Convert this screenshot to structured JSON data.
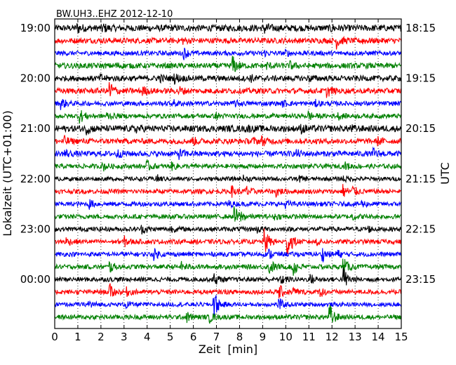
{
  "chart_data": {
    "type": "line",
    "title": "BW.UH3..EHZ 2012-12-10",
    "xlabel": "Zeit  [min]",
    "ylabel_left": "Lokalzeit (UTC+01:00)",
    "ylabel_right": "UTC",
    "xlim": [
      0,
      15
    ],
    "x_ticks": [
      "0",
      "1",
      "2",
      "3",
      "4",
      "5",
      "6",
      "7",
      "8",
      "9",
      "10",
      "11",
      "12",
      "13",
      "14",
      "15"
    ],
    "vertical_grid": "dotted at each minute",
    "traces_per_hour": 4,
    "color_cycle": [
      "#000000",
      "#ff0000",
      "#0000ff",
      "#008000"
    ],
    "left_hour_labels": [
      "19:00",
      "20:00",
      "21:00",
      "22:00",
      "23:00",
      "00:00"
    ],
    "right_hour_labels": [
      "18:15",
      "19:15",
      "20:15",
      "21:15",
      "22:15",
      "23:15"
    ],
    "traces": [
      {
        "amp": 0.7,
        "events": [
          [
            1.0,
            0.8
          ],
          [
            2.1,
            0.7
          ],
          [
            9.1,
            1.0
          ],
          [
            12.0,
            0.5
          ]
        ]
      },
      {
        "amp": 0.6,
        "events": [
          [
            5.5,
            0.6
          ],
          [
            12.2,
            1.4
          ],
          [
            13.3,
            0.5
          ]
        ]
      },
      {
        "amp": 0.5,
        "events": [
          [
            5.6,
            1.0
          ],
          [
            9.0,
            0.7
          ],
          [
            10.0,
            0.5
          ]
        ]
      },
      {
        "amp": 0.6,
        "events": [
          [
            2.6,
            0.6
          ],
          [
            7.7,
            1.9
          ],
          [
            9.2,
            0.5
          ],
          [
            10.2,
            0.6
          ]
        ]
      },
      {
        "amp": 0.6,
        "events": [
          [
            2.0,
            0.6
          ],
          [
            4.5,
            0.7
          ],
          [
            5.2,
            0.9
          ],
          [
            8.5,
            0.5
          ],
          [
            11.0,
            0.5
          ]
        ]
      },
      {
        "amp": 0.6,
        "events": [
          [
            2.4,
            2.0
          ],
          [
            3.8,
            0.8
          ],
          [
            5.4,
            0.7
          ],
          [
            11.8,
            1.0
          ]
        ]
      },
      {
        "amp": 0.5,
        "events": [
          [
            0.3,
            1.0
          ],
          [
            5.2,
            0.5
          ],
          [
            7.8,
            0.5
          ],
          [
            9.9,
            0.5
          ],
          [
            11.3,
            0.5
          ]
        ]
      },
      {
        "amp": 0.5,
        "events": [
          [
            1.1,
            1.3
          ],
          [
            2.3,
            0.6
          ],
          [
            7.0,
            0.5
          ],
          [
            11.0,
            0.8
          ],
          [
            12.3,
            0.5
          ]
        ]
      },
      {
        "amp": 0.7,
        "events": [
          [
            1.4,
            0.8
          ],
          [
            3.5,
            0.6
          ],
          [
            8.3,
            0.5
          ],
          [
            10.7,
            0.6
          ],
          [
            12.8,
            0.5
          ]
        ]
      },
      {
        "amp": 0.6,
        "events": [
          [
            0.4,
            0.9
          ],
          [
            6.0,
            0.6
          ],
          [
            8.5,
            0.6
          ],
          [
            9.0,
            0.7
          ],
          [
            14.0,
            0.6
          ]
        ]
      },
      {
        "amp": 0.6,
        "events": [
          [
            0.4,
            1.0
          ],
          [
            2.7,
            0.7
          ],
          [
            5.4,
            0.8
          ],
          [
            10.5,
            0.5
          ],
          [
            13.8,
            0.8
          ]
        ]
      },
      {
        "amp": 0.5,
        "events": [
          [
            2.1,
            0.8
          ],
          [
            4.0,
            0.9
          ],
          [
            5.1,
            0.6
          ],
          [
            12.6,
            0.6
          ]
        ]
      },
      {
        "amp": 0.45,
        "events": [
          [
            4.4,
            0.8
          ],
          [
            8.2,
            0.5
          ],
          [
            10.6,
            0.5
          ],
          [
            12.5,
            0.6
          ]
        ]
      },
      {
        "amp": 0.5,
        "events": [
          [
            7.7,
            0.9
          ],
          [
            8.3,
            1.1
          ],
          [
            9.6,
            1.0
          ],
          [
            12.5,
            1.3
          ],
          [
            12.9,
            1.0
          ]
        ]
      },
      {
        "amp": 0.5,
        "events": [
          [
            1.5,
            0.8
          ],
          [
            7.5,
            0.6
          ],
          [
            10.0,
            0.6
          ],
          [
            13.3,
            0.6
          ]
        ]
      },
      {
        "amp": 0.5,
        "events": [
          [
            7.8,
            1.9
          ],
          [
            8.1,
            0.6
          ],
          [
            9.5,
            0.5
          ],
          [
            12.9,
            0.6
          ]
        ]
      },
      {
        "amp": 0.5,
        "events": [
          [
            3.8,
            0.7
          ],
          [
            5.0,
            0.6
          ],
          [
            8.8,
            0.6
          ],
          [
            13.5,
            0.8
          ]
        ]
      },
      {
        "amp": 0.5,
        "events": [
          [
            0.5,
            0.8
          ],
          [
            3.0,
            1.0
          ],
          [
            9.1,
            2.5
          ],
          [
            10.1,
            3.0
          ],
          [
            11.3,
            0.7
          ]
        ]
      },
      {
        "amp": 0.5,
        "events": [
          [
            4.3,
            1.0
          ],
          [
            9.3,
            0.8
          ],
          [
            11.6,
            1.2
          ],
          [
            12.2,
            0.9
          ]
        ]
      },
      {
        "amp": 0.5,
        "events": [
          [
            2.4,
            1.0
          ],
          [
            5.5,
            0.8
          ],
          [
            9.3,
            1.6
          ],
          [
            10.3,
            2.3
          ],
          [
            12.5,
            1.8
          ]
        ]
      },
      {
        "amp": 0.5,
        "events": [
          [
            6.9,
            1.3
          ],
          [
            9.8,
            1.0
          ],
          [
            11.1,
            0.8
          ],
          [
            12.5,
            2.5
          ]
        ]
      },
      {
        "amp": 0.5,
        "events": [
          [
            2.4,
            1.4
          ],
          [
            3.1,
            0.8
          ],
          [
            9.7,
            1.5
          ],
          [
            10.3,
            1.0
          ],
          [
            11.5,
            0.9
          ]
        ]
      },
      {
        "amp": 0.45,
        "events": [
          [
            1.5,
            0.9
          ],
          [
            3.1,
            0.7
          ],
          [
            6.9,
            3.0
          ],
          [
            9.7,
            1.2
          ]
        ]
      },
      {
        "amp": 0.5,
        "events": [
          [
            5.7,
            1.0
          ],
          [
            6.7,
            1.0
          ],
          [
            11.9,
            2.8
          ]
        ]
      }
    ]
  }
}
